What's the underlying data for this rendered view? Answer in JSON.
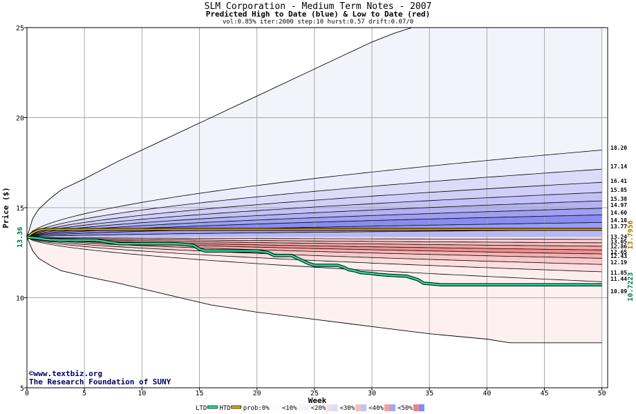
{
  "chart_data": {
    "type": "area",
    "title": "SLM Corporation - Medium Term Notes - 2007",
    "subtitle": "Predicted High to Date (blue) &  Low to Date (red)",
    "params": "vol:0.85% iter:2000 step:10 hurst:0.57 drift:0.07/0",
    "xlabel": "Week",
    "ylabel": "Price ($)",
    "xlim": [
      0,
      50.5
    ],
    "ylim": [
      5,
      25
    ],
    "xticks": [
      0,
      5,
      10,
      15,
      20,
      25,
      30,
      35,
      40,
      45,
      50
    ],
    "yticks": [
      5,
      10,
      15,
      20,
      25
    ],
    "grid": true,
    "start_price": 13.36,
    "start_price_label": "13.36",
    "high_bands": [
      18.2,
      17.14,
      16.41,
      15.85,
      15.38,
      14.97,
      14.6,
      14.18,
      13.77
    ],
    "high_band_labels": [
      "18.20",
      "17.14",
      "16.41",
      "15.85",
      "15.38",
      "14.97",
      "14.60",
      "14.18",
      "13.77"
    ],
    "low_bands": [
      13.24,
      13.05,
      12.86,
      12.65,
      12.43,
      12.19,
      11.85,
      11.44,
      10.89
    ],
    "low_band_labels": [
      "13.24",
      "13.05",
      "12.86",
      "12.65",
      "12.43",
      "12.19",
      "11.85",
      "11.44",
      "10.89"
    ],
    "outer_high": {
      "x": [
        0,
        0.5,
        1,
        2,
        3,
        5,
        8,
        12,
        16,
        20,
        24,
        28,
        30,
        32,
        33.5,
        35,
        50
      ],
      "y": [
        13.36,
        14.4,
        14.9,
        15.5,
        16,
        16.6,
        17.6,
        18.8,
        20,
        21.2,
        22.4,
        23.6,
        24.2,
        24.7,
        25,
        25,
        25
      ]
    },
    "outer_low": {
      "x": [
        0,
        0.5,
        1,
        2,
        3,
        5,
        8,
        12,
        16,
        20,
        25,
        30,
        35,
        40,
        42,
        50
      ],
      "y": [
        13.36,
        12.6,
        12.2,
        11.8,
        11.5,
        11.2,
        10.8,
        10.2,
        9.6,
        9.2,
        8.8,
        8.4,
        8.0,
        7.7,
        7.5,
        7.5
      ]
    },
    "htd_value": 13.7956,
    "htd_label": "13.7956",
    "htd": {
      "x": [
        0,
        0.5,
        1,
        1.5,
        50
      ],
      "y": [
        13.36,
        13.6,
        13.75,
        13.7956,
        13.7956
      ]
    },
    "ltd_value": 10.7223,
    "ltd_label": "10.7223",
    "ltd": {
      "x": [
        0,
        1,
        1.5,
        2,
        3,
        4,
        6,
        6.5,
        7,
        7.5,
        8,
        13,
        14,
        14.5,
        15,
        15.5,
        20,
        21,
        21.5,
        22,
        23,
        23.5,
        24,
        24.5,
        25,
        27,
        27.5,
        28,
        28.5,
        29,
        30,
        30.5,
        31.5,
        33,
        33.5,
        34,
        34.5,
        35,
        36,
        50
      ],
      "y": [
        13.36,
        13.3,
        13.25,
        13.22,
        13.2,
        13.2,
        13.2,
        13.15,
        13.1,
        13.05,
        13.0,
        13.0,
        12.95,
        12.9,
        12.7,
        12.6,
        12.6,
        12.5,
        12.35,
        12.35,
        12.35,
        12.2,
        12.05,
        11.9,
        11.8,
        11.8,
        11.7,
        11.55,
        11.5,
        11.4,
        11.35,
        11.3,
        11.25,
        11.2,
        11.1,
        11.0,
        10.8,
        10.78,
        10.72,
        10.72
      ]
    },
    "legend": {
      "placement": "bottom",
      "items": [
        {
          "label": "LTD",
          "kind": "line",
          "color": "#22dd99"
        },
        {
          "label": "HTD",
          "kind": "line",
          "color": "#ddaa00"
        },
        {
          "label": "prob:0%",
          "kind": "none"
        },
        {
          "label": "<10%",
          "kind": "swatch",
          "colors": [
            "#fcf3f3",
            "#f3f3fc"
          ]
        },
        {
          "label": "<20%",
          "kind": "swatch",
          "colors": [
            "#f9dcdc",
            "#dcdcf9"
          ]
        },
        {
          "label": "<30%",
          "kind": "swatch",
          "colors": [
            "#f7bdbd",
            "#c3c3f6"
          ]
        },
        {
          "label": "<40%",
          "kind": "swatch",
          "colors": [
            "#f49e9e",
            "#a5a5f4"
          ]
        },
        {
          "label": "<50%",
          "kind": "swatch",
          "colors": [
            "#f27f7f",
            "#8787f2"
          ]
        }
      ]
    }
  },
  "credit": {
    "line1": "©www.textbiz.org",
    "line2": "The Research Foundation of SUNY"
  },
  "colors": {
    "blue_fills": [
      "#ececfc",
      "#dcdcf9",
      "#cfcff8",
      "#c2c2f6",
      "#b2b2f5",
      "#9f9ff3",
      "#8b8bf2",
      "#9c9cf3",
      "#b8b8f6",
      "#d6d6f9"
    ],
    "red_fills": [
      "#fbe1e1",
      "#f9cfcf",
      "#f7bbbb",
      "#f5a7a7",
      "#f38f8f",
      "#f7b1b1",
      "#f9c9c9",
      "#fbdede",
      "#fdeded",
      "#fef1f1"
    ],
    "outer_high_fill": "#f3f3fc",
    "outer_low_fill": "#fdf0f0",
    "grid": "#a8a8a8",
    "ltd_line": "#22dd99",
    "htd_line": "#ddaa00",
    "ltd_label": "#007744",
    "htd_label": "#aa7700",
    "start_label": "#007744"
  }
}
